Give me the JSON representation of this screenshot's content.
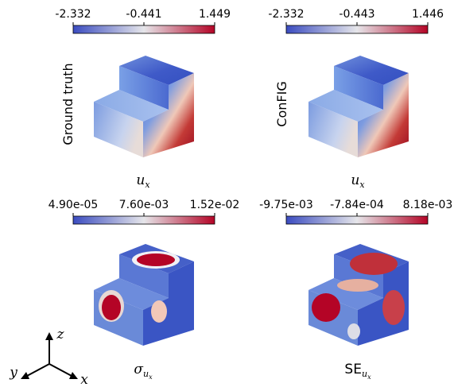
{
  "panels": [
    {
      "colorbar_ticks": [
        "-2.332",
        "-0.441",
        "1.449"
      ],
      "row_label": "Ground truth",
      "caption": {
        "symbol": "u",
        "subscript": "x"
      }
    },
    {
      "colorbar_ticks": [
        "-2.332",
        "-0.443",
        "1.446"
      ],
      "row_label": "ConFIG",
      "caption": {
        "symbol": "u",
        "subscript": "x"
      }
    },
    {
      "colorbar_ticks": [
        "4.90e-05",
        "7.60e-03",
        "1.52e-02"
      ],
      "caption": {
        "symbol": "σ",
        "subscript": "u",
        "subsubscript": "x"
      }
    },
    {
      "colorbar_ticks": [
        "-9.75e-03",
        "-7.84e-04",
        "8.18e-03"
      ],
      "caption": {
        "symbol": "SE",
        "subscript": "u",
        "subsubscript": "x"
      }
    }
  ],
  "axes_triad": {
    "z": "z",
    "y": "y",
    "x": "x"
  }
}
